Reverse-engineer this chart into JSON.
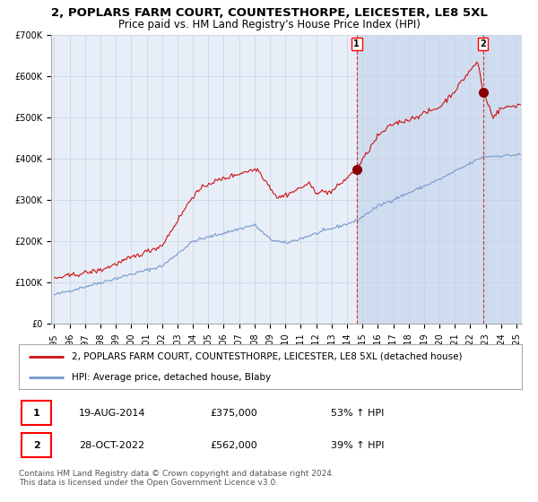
{
  "title": "2, POPLARS FARM COURT, COUNTESTHORPE, LEICESTER, LE8 5XL",
  "subtitle": "Price paid vs. HM Land Registry's House Price Index (HPI)",
  "ylim": [
    0,
    700000
  ],
  "yticks": [
    0,
    100000,
    200000,
    300000,
    400000,
    500000,
    600000,
    700000
  ],
  "ytick_labels": [
    "£0",
    "£100K",
    "£200K",
    "£300K",
    "£400K",
    "£500K",
    "£600K",
    "£700K"
  ],
  "background_color": "#ffffff",
  "plot_bg_color": "#e8eef8",
  "grid_color": "#c8d0e0",
  "red_line_color": "#cc1111",
  "blue_line_color": "#7799cc",
  "shade_color": "#d0ddf0",
  "dot_color": "#880000",
  "dashed_color": "#cc3333",
  "purchase1_date": 2014.63,
  "purchase1_price": 375000,
  "purchase2_date": 2022.83,
  "purchase2_price": 562000,
  "legend_red": "2, POPLARS FARM COURT, COUNTESTHORPE, LEICESTER, LE8 5XL (detached house)",
  "legend_blue": "HPI: Average price, detached house, Blaby",
  "annotation1_date": "19-AUG-2014",
  "annotation1_price": "£375,000",
  "annotation1_pct": "53% ↑ HPI",
  "annotation2_date": "28-OCT-2022",
  "annotation2_price": "£562,000",
  "annotation2_pct": "39% ↑ HPI",
  "footer": "Contains HM Land Registry data © Crown copyright and database right 2024.\nThis data is licensed under the Open Government Licence v3.0.",
  "title_fontsize": 9.5,
  "subtitle_fontsize": 8.5,
  "tick_fontsize": 7,
  "legend_fontsize": 7.5,
  "footer_fontsize": 6.5
}
